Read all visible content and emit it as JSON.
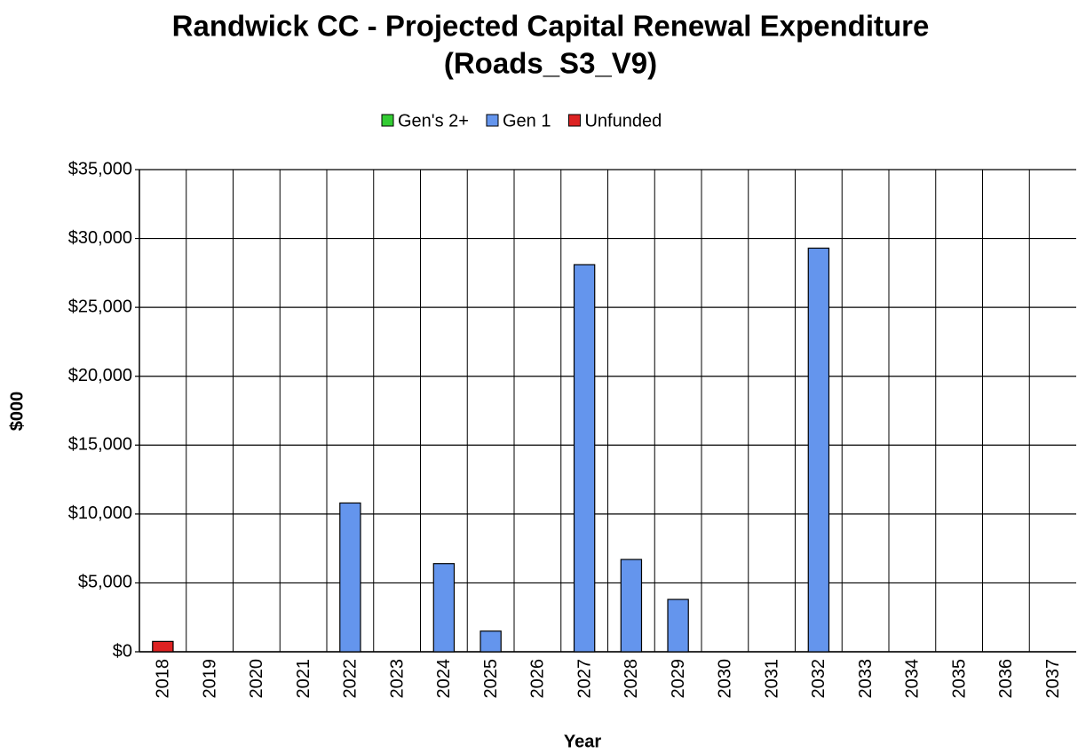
{
  "chart_data": {
    "type": "stacked_bar",
    "title": [
      "Randwick CC - Projected Capital Renewal Expenditure",
      "(Roads_S3_V9)"
    ],
    "x_label": "Year",
    "y_label": "$000",
    "categories": [
      "2018",
      "2019",
      "2020",
      "2021",
      "2022",
      "2023",
      "2024",
      "2025",
      "2026",
      "2027",
      "2028",
      "2029",
      "2030",
      "2031",
      "2032",
      "2033",
      "2034",
      "2035",
      "2036",
      "2037"
    ],
    "series": [
      {
        "name": "Gen's 2+",
        "color": "#33cc33",
        "values": [
          0,
          0,
          0,
          0,
          0,
          0,
          0,
          0,
          0,
          0,
          0,
          0,
          0,
          0,
          0,
          0,
          0,
          0,
          0,
          0
        ]
      },
      {
        "name": "Gen 1",
        "color": "#6495ed",
        "values": [
          0,
          0,
          0,
          0,
          10800,
          0,
          6400,
          1500,
          0,
          28100,
          6700,
          3800,
          0,
          0,
          29300,
          0,
          0,
          0,
          0,
          0
        ]
      },
      {
        "name": "Unfunded",
        "color": "#dd2222",
        "values": [
          750,
          0,
          0,
          0,
          0,
          0,
          0,
          0,
          0,
          0,
          0,
          0,
          0,
          0,
          0,
          0,
          0,
          0,
          0,
          0
        ]
      }
    ],
    "ylim": [
      0,
      35000
    ],
    "yticks": [
      {
        "value": 0,
        "label": "$0"
      },
      {
        "value": 5000,
        "label": "$5,000"
      },
      {
        "value": 10000,
        "label": "$10,000"
      },
      {
        "value": 15000,
        "label": "$15,000"
      },
      {
        "value": 20000,
        "label": "$20,000"
      },
      {
        "value": 25000,
        "label": "$25,000"
      },
      {
        "value": 30000,
        "label": "$30,000"
      },
      {
        "value": 35000,
        "label": "$35,000"
      }
    ],
    "grid": true,
    "legend": "top"
  }
}
